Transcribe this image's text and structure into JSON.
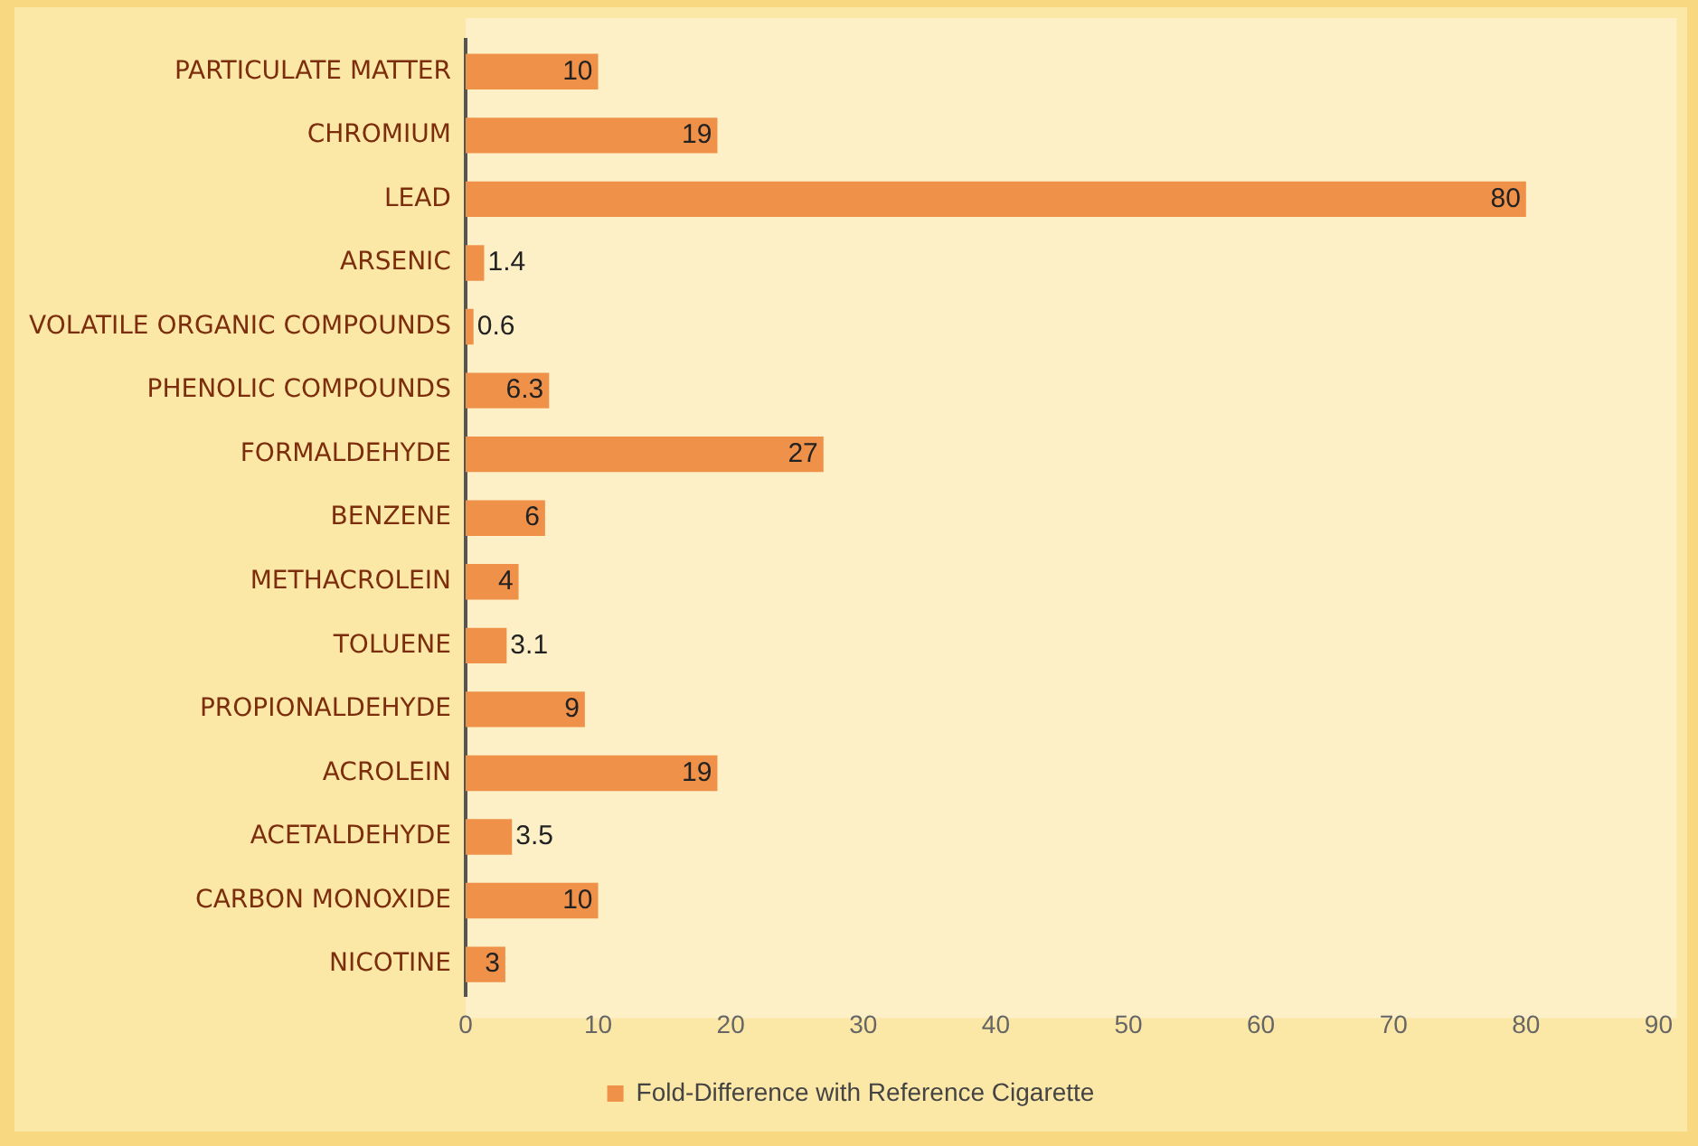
{
  "chart_data": {
    "type": "bar",
    "orientation": "horizontal",
    "categories": [
      "PARTICULATE MATTER",
      "CHROMIUM",
      "LEAD",
      "ARSENIC",
      "VOLATILE ORGANIC COMPOUNDS",
      "PHENOLIC COMPOUNDS",
      "FORMALDEHYDE",
      "BENZENE",
      "METHACROLEIN",
      "TOLUENE",
      "PROPIONALDEHYDE",
      "ACROLEIN",
      "ACETALDEHYDE",
      "CARBON MONOXIDE",
      "NICOTINE"
    ],
    "series": [
      {
        "name": "Fold-Difference with Reference Cigarette",
        "color": "#f0914a",
        "values": [
          10,
          19,
          80,
          1.4,
          0.6,
          6.3,
          27,
          6,
          4,
          3.1,
          9,
          19,
          3.5,
          10,
          3
        ]
      }
    ],
    "xlim": [
      0,
      90
    ],
    "xticks": [
      0,
      10,
      20,
      30,
      40,
      50,
      60,
      70,
      80,
      90
    ],
    "grid": false,
    "legend": "bottom",
    "data_labels": true
  }
}
